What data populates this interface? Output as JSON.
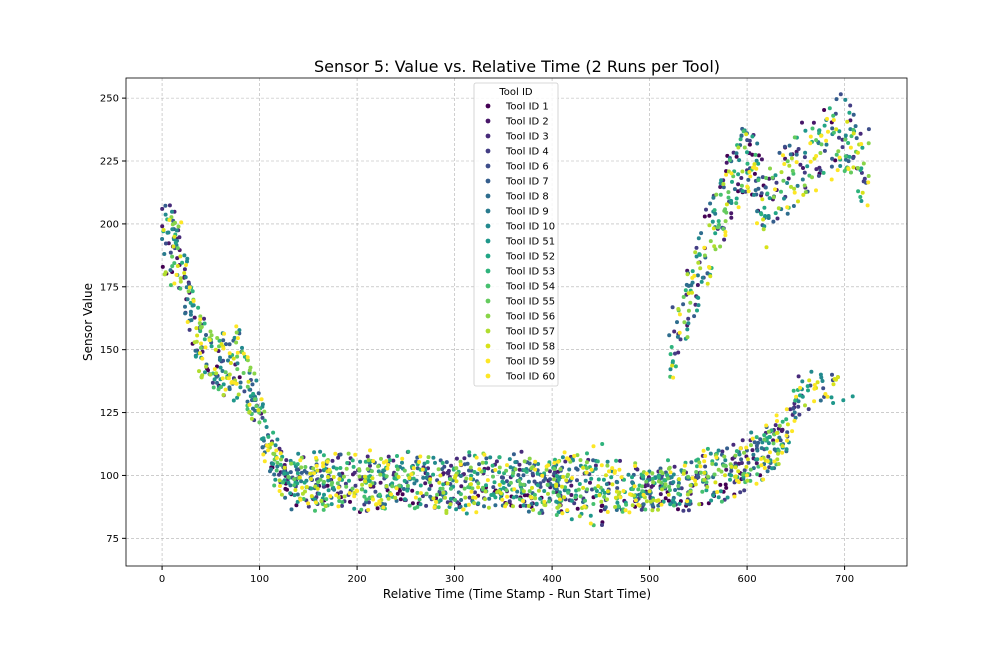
{
  "chart_data": {
    "type": "scatter",
    "title": "Sensor 5: Value vs. Relative Time (2 Runs per Tool)",
    "xlabel": "Relative Time (Time Stamp - Run Start Time)",
    "ylabel": "Sensor Value",
    "xlim": [
      -37,
      764
    ],
    "ylim": [
      64,
      258
    ],
    "xticks": [
      0,
      100,
      200,
      300,
      400,
      500,
      600,
      700
    ],
    "yticks": [
      75,
      100,
      125,
      150,
      175,
      200,
      225,
      250
    ],
    "grid": true,
    "legend": {
      "title": "Tool ID",
      "placement": "upper center"
    },
    "series": [
      {
        "name": "Tool ID 1",
        "color": "#440154"
      },
      {
        "name": "Tool ID 2",
        "color": "#481769"
      },
      {
        "name": "Tool ID 3",
        "color": "#472a7a"
      },
      {
        "name": "Tool ID 4",
        "color": "#433d84"
      },
      {
        "name": "Tool ID 6",
        "color": "#3d4e8a"
      },
      {
        "name": "Tool ID 7",
        "color": "#355e8d"
      },
      {
        "name": "Tool ID 8",
        "color": "#2e6d8e"
      },
      {
        "name": "Tool ID 9",
        "color": "#297b8e"
      },
      {
        "name": "Tool ID 10",
        "color": "#23898e"
      },
      {
        "name": "Tool ID 51",
        "color": "#1f978b"
      },
      {
        "name": "Tool ID 52",
        "color": "#21a585"
      },
      {
        "name": "Tool ID 53",
        "color": "#2eb37c"
      },
      {
        "name": "Tool ID 54",
        "color": "#46c06f"
      },
      {
        "name": "Tool ID 55",
        "color": "#65cb5e"
      },
      {
        "name": "Tool ID 56",
        "color": "#89d548"
      },
      {
        "name": "Tool ID 57",
        "color": "#b0dd2f"
      },
      {
        "name": "Tool ID 58",
        "color": "#d8e219"
      },
      {
        "name": "Tool ID 59",
        "color": "#fde725"
      },
      {
        "name": "Tool ID 60",
        "color": "#fde725"
      }
    ],
    "profile": {
      "description_points_x": [
        0,
        10,
        20,
        30,
        40,
        60,
        80,
        95,
        110,
        130,
        200,
        300,
        400,
        450,
        480,
        500,
        550,
        600,
        640,
        660
      ],
      "upper_band_y": [
        210,
        205,
        195,
        175,
        160,
        155,
        155,
        140,
        115,
        105,
        105,
        105,
        105,
        108,
        100,
        100,
        105,
        112,
        125,
        140
      ],
      "lower_band_y": [
        180,
        175,
        170,
        150,
        140,
        135,
        130,
        120,
        100,
        90,
        88,
        88,
        88,
        84,
        88,
        88,
        90,
        95,
        110,
        130
      ],
      "peak_branch_x": [
        520,
        560,
        600,
        620,
        650,
        680,
        700,
        720
      ],
      "peak_branch_y": [
        150,
        195,
        230,
        210,
        225,
        235,
        240,
        225
      ]
    }
  }
}
